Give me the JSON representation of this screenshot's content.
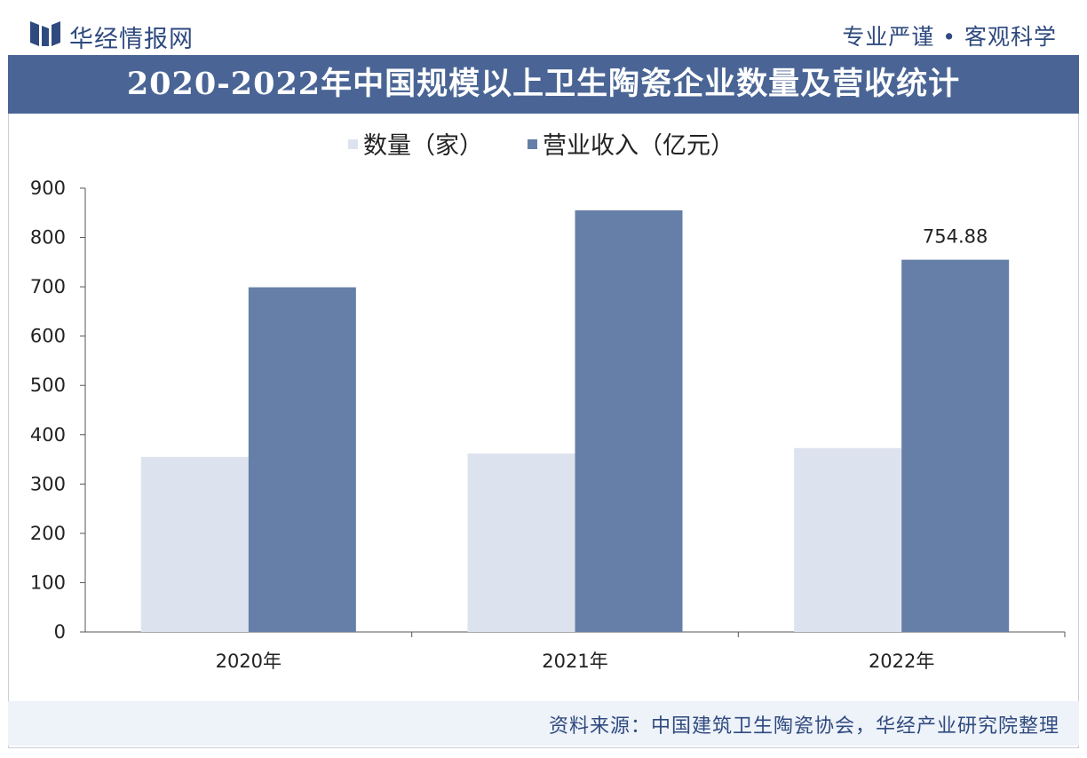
{
  "header": {
    "brand": "华经情报网",
    "slogan": "专业严谨 • 客观科学"
  },
  "title": "2020-2022年中国规模以上卫生陶瓷企业数量及营收统计",
  "footer": {
    "source": "资料来源：中国建筑卫生陶瓷协会，华经产业研究院整理"
  },
  "colors": {
    "count": "#dde3ee",
    "revenue": "#667fa9",
    "titlebar": "#4a6595",
    "brand": "#2f4a7f"
  },
  "chart_data": {
    "type": "bar",
    "title": "2020-2022年中国规模以上卫生陶瓷企业数量及营收统计",
    "categories": [
      "2020年",
      "2021年",
      "2022年"
    ],
    "series": [
      {
        "name": "数量（家）",
        "values": [
          355,
          362,
          373
        ]
      },
      {
        "name": "营业收入（亿元）",
        "values": [
          699,
          855,
          754.88
        ]
      }
    ],
    "data_labels": [
      {
        "series": 1,
        "index": 2,
        "text": "754.88"
      }
    ],
    "ylim": [
      0,
      900
    ],
    "yticks": [
      0,
      100,
      200,
      300,
      400,
      500,
      600,
      700,
      800,
      900
    ],
    "grid": false,
    "legend": "top-center"
  }
}
